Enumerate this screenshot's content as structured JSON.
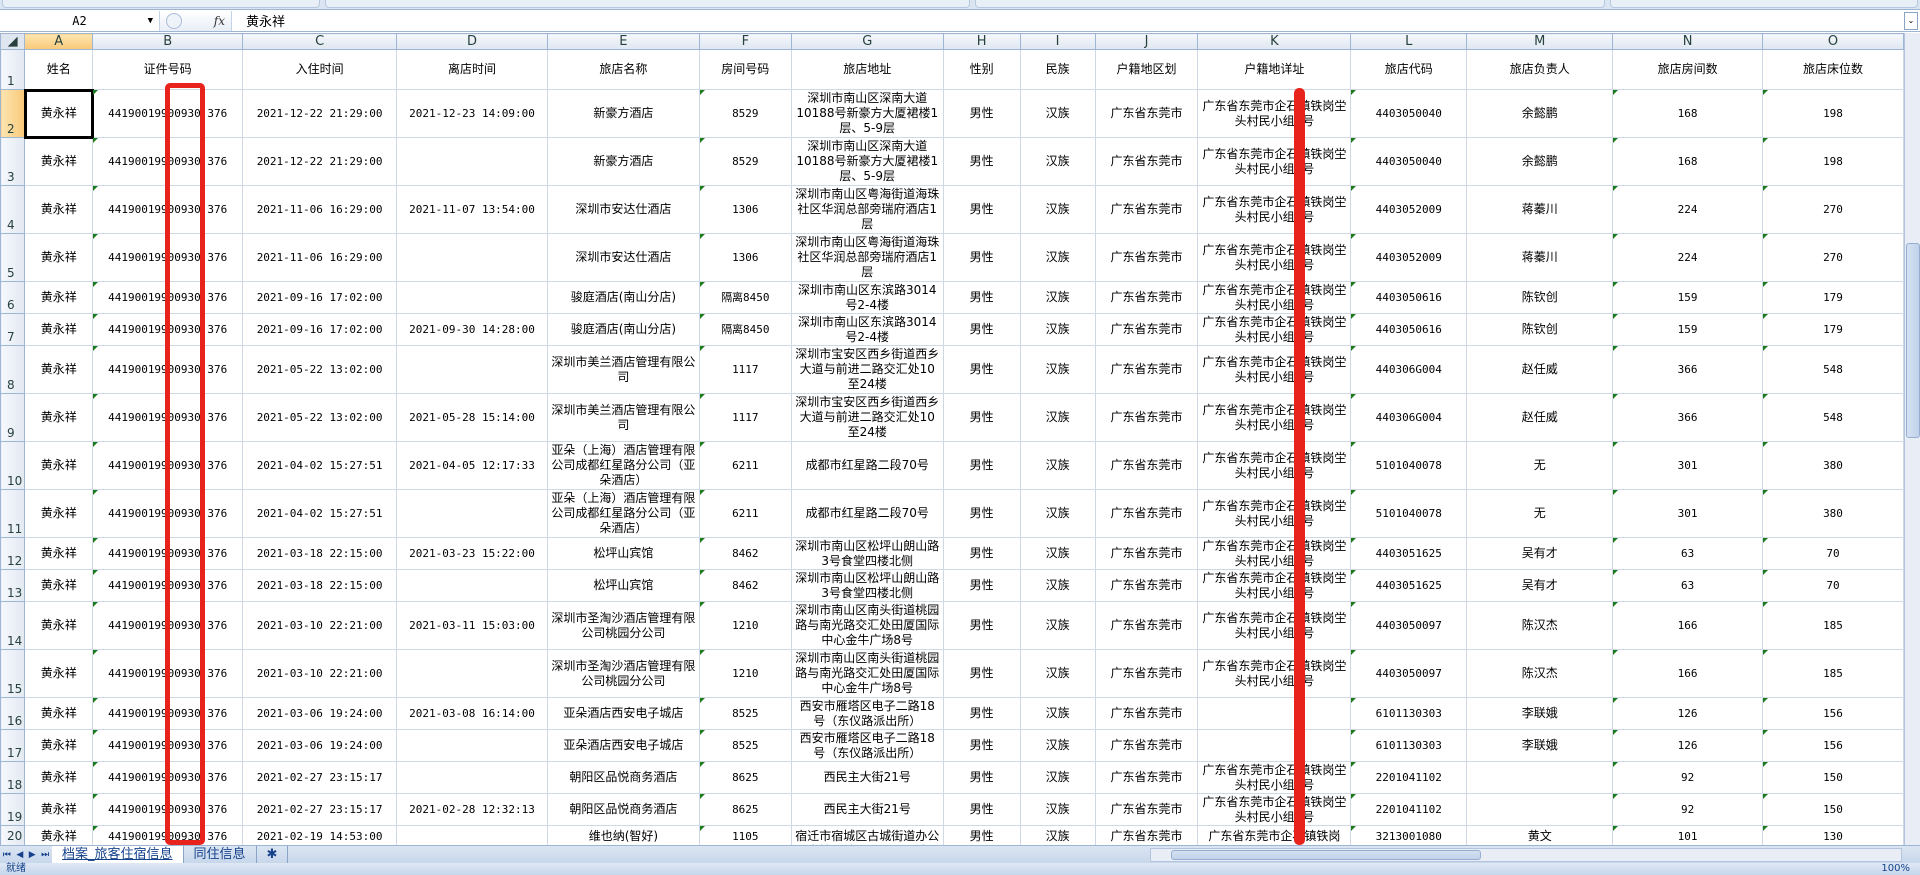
{
  "formula_bar": {
    "name_box": "A2",
    "fx_label": "fx",
    "value": "黄永祥"
  },
  "column_letters": [
    "A",
    "B",
    "C",
    "D",
    "E",
    "F",
    "G",
    "H",
    "I",
    "J",
    "K",
    "L",
    "M",
    "N",
    "O"
  ],
  "headers": [
    "姓名",
    "证件号码",
    "入住时间",
    "离店时间",
    "旅店名称",
    "房间号码",
    "旅店地址",
    "性别",
    "民族",
    "户籍地区划",
    "户籍地详址",
    "旅店代码",
    "旅店负责人",
    "旅店房间数",
    "旅店床位数"
  ],
  "rows": [
    [
      "黄永祥",
      "44190019900930 376",
      "2021-12-22 21:29:00",
      "2021-12-23 14:09:00",
      "新豪方酒店",
      "8529",
      "深圳市南山区深南大道10188号新豪方大厦裙楼1层、5-9层",
      "男性",
      "汉族",
      "广东省东莞市",
      "广东省东莞市企石镇铁岗坣头村民小组0号",
      "4403050040",
      "余懿鹏",
      "168",
      "198"
    ],
    [
      "黄永祥",
      "44190019900930 376",
      "2021-12-22 21:29:00",
      "",
      "新豪方酒店",
      "8529",
      "深圳市南山区深南大道10188号新豪方大厦裙楼1层、5-9层",
      "男性",
      "汉族",
      "广东省东莞市",
      "广东省东莞市企石镇铁岗坣头村民小组0号",
      "4403050040",
      "余懿鹏",
      "168",
      "198"
    ],
    [
      "黄永祥",
      "44190019900930 376",
      "2021-11-06 16:29:00",
      "2021-11-07 13:54:00",
      "深圳市安达仕酒店",
      "1306",
      "深圳市南山区粤海街道海珠社区华润总部旁瑞府酒店1层",
      "男性",
      "汉族",
      "广东省东莞市",
      "广东省东莞市企石镇铁岗坣头村民小组0号",
      "4403052009",
      "蒋蓁川",
      "224",
      "270"
    ],
    [
      "黄永祥",
      "44190019900930 376",
      "2021-11-06 16:29:00",
      "",
      "深圳市安达仕酒店",
      "1306",
      "深圳市南山区粤海街道海珠社区华润总部旁瑞府酒店1层",
      "男性",
      "汉族",
      "广东省东莞市",
      "广东省东莞市企石镇铁岗坣头村民小组0号",
      "4403052009",
      "蒋蓁川",
      "224",
      "270"
    ],
    [
      "黄永祥",
      "44190019900930 376",
      "2021-09-16 17:02:00",
      "",
      "骏庭酒店(南山分店)",
      "隔离8450",
      "深圳市南山区东滨路3014号2-4楼",
      "男性",
      "汉族",
      "广东省东莞市",
      "广东省东莞市企石镇铁岗坣头村民小组0号",
      "4403050616",
      "陈钦创",
      "159",
      "179"
    ],
    [
      "黄永祥",
      "44190019900930 376",
      "2021-09-16 17:02:00",
      "2021-09-30 14:28:00",
      "骏庭酒店(南山分店)",
      "隔离8450",
      "深圳市南山区东滨路3014号2-4楼",
      "男性",
      "汉族",
      "广东省东莞市",
      "广东省东莞市企石镇铁岗坣头村民小组0号",
      "4403050616",
      "陈钦创",
      "159",
      "179"
    ],
    [
      "黄永祥",
      "44190019900930 376",
      "2021-05-22 13:02:00",
      "",
      "深圳市美兰酒店管理有限公司",
      "1117",
      "深圳市宝安区西乡街道西乡大道与前进二路交汇处10至24楼",
      "男性",
      "汉族",
      "广东省东莞市",
      "广东省东莞市企石镇铁岗坣头村民小组0号",
      "440306G004",
      "赵任威",
      "366",
      "548"
    ],
    [
      "黄永祥",
      "44190019900930 376",
      "2021-05-22 13:02:00",
      "2021-05-28 15:14:00",
      "深圳市美兰酒店管理有限公司",
      "1117",
      "深圳市宝安区西乡街道西乡大道与前进二路交汇处10至24楼",
      "男性",
      "汉族",
      "广东省东莞市",
      "广东省东莞市企石镇铁岗坣头村民小组0号",
      "440306G004",
      "赵任威",
      "366",
      "548"
    ],
    [
      "黄永祥",
      "44190019900930 376",
      "2021-04-02 15:27:51",
      "2021-04-05 12:17:33",
      "亚朵（上海）酒店管理有限公司成都红星路分公司（亚朵酒店）",
      "6211",
      "成都市红星路二段70号",
      "男性",
      "汉族",
      "广东省东莞市",
      "广东省东莞市企石镇铁岗坣头村民小组0号",
      "5101040078",
      "无",
      "301",
      "380"
    ],
    [
      "黄永祥",
      "44190019900930 376",
      "2021-04-02 15:27:51",
      "",
      "亚朵（上海）酒店管理有限公司成都红星路分公司（亚朵酒店）",
      "6211",
      "成都市红星路二段70号",
      "男性",
      "汉族",
      "广东省东莞市",
      "广东省东莞市企石镇铁岗坣头村民小组0号",
      "5101040078",
      "无",
      "301",
      "380"
    ],
    [
      "黄永祥",
      "44190019900930 376",
      "2021-03-18 22:15:00",
      "2021-03-23 15:22:00",
      "松坪山宾馆",
      "8462",
      "深圳市南山区松坪山朗山路3号食堂四楼北侧",
      "男性",
      "汉族",
      "广东省东莞市",
      "广东省东莞市企石镇铁岗坣头村民小组0号",
      "4403051625",
      "吴有才",
      "63",
      "70"
    ],
    [
      "黄永祥",
      "44190019900930 376",
      "2021-03-18 22:15:00",
      "",
      "松坪山宾馆",
      "8462",
      "深圳市南山区松坪山朗山路3号食堂四楼北侧",
      "男性",
      "汉族",
      "广东省东莞市",
      "广东省东莞市企石镇铁岗坣头村民小组0号",
      "4403051625",
      "吴有才",
      "63",
      "70"
    ],
    [
      "黄永祥",
      "44190019900930 376",
      "2021-03-10 22:21:00",
      "2021-03-11 15:03:00",
      "深圳市圣淘沙酒店管理有限公司桃园分公司",
      "1210",
      "深圳市南山区南头街道桃园路与南光路交汇处田厦国际中心金牛广场8号",
      "男性",
      "汉族",
      "广东省东莞市",
      "广东省东莞市企石镇铁岗坣头村民小组0号",
      "4403050097",
      "陈汉杰",
      "166",
      "185"
    ],
    [
      "黄永祥",
      "44190019900930 376",
      "2021-03-10 22:21:00",
      "",
      "深圳市圣淘沙酒店管理有限公司桃园分公司",
      "1210",
      "深圳市南山区南头街道桃园路与南光路交汇处田厦国际中心金牛广场8号",
      "男性",
      "汉族",
      "广东省东莞市",
      "广东省东莞市企石镇铁岗坣头村民小组0号",
      "4403050097",
      "陈汉杰",
      "166",
      "185"
    ],
    [
      "黄永祥",
      "44190019900930 376",
      "2021-03-06 19:24:00",
      "2021-03-08 16:14:00",
      "亚朵酒店西安电子城店",
      "8525",
      "西安市雁塔区电子二路18号（东仪路派出所）",
      "男性",
      "汉族",
      "广东省东莞市",
      "",
      "6101130303",
      "李联娥",
      "126",
      "156"
    ],
    [
      "黄永祥",
      "44190019900930 376",
      "2021-03-06 19:24:00",
      "",
      "亚朵酒店西安电子城店",
      "8525",
      "西安市雁塔区电子二路18号（东仪路派出所）",
      "男性",
      "汉族",
      "广东省东莞市",
      "",
      "6101130303",
      "李联娥",
      "126",
      "156"
    ],
    [
      "黄永祥",
      "44190019900930 376",
      "2021-02-27 23:15:17",
      "",
      "朝阳区品悦商务酒店",
      "8625",
      "西民主大街21号",
      "男性",
      "汉族",
      "广东省东莞市",
      "广东省东莞市企石镇铁岗坣头村民小组0号",
      "2201041102",
      "",
      "92",
      "150"
    ],
    [
      "黄永祥",
      "44190019900930 376",
      "2021-02-27 23:15:17",
      "2021-02-28 12:32:13",
      "朝阳区品悦商务酒店",
      "8625",
      "西民主大街21号",
      "男性",
      "汉族",
      "广东省东莞市",
      "广东省东莞市企石镇铁岗坣头村民小组0号",
      "2201041102",
      "",
      "92",
      "150"
    ],
    [
      "黄永祥",
      "44190019900930 376",
      "2021-02-19 14:53:00",
      "",
      "维也纳(智好)",
      "1105",
      "宿迁市宿城区古城街道办公大楼（地上北一层一地",
      "男性",
      "汉族",
      "广东省东莞市",
      "广东省东莞市企石镇铁岗",
      "3213001080",
      "黄文",
      "101",
      "130"
    ]
  ],
  "sheet_tabs": [
    "档案_旅客住宿信息",
    "同住信息"
  ],
  "status": {
    "ready": "就绪",
    "zoom": "100%"
  },
  "colors": {
    "highlight": "#e8231c",
    "header_selected": "#f9c979",
    "tab_text": "#15428b"
  }
}
